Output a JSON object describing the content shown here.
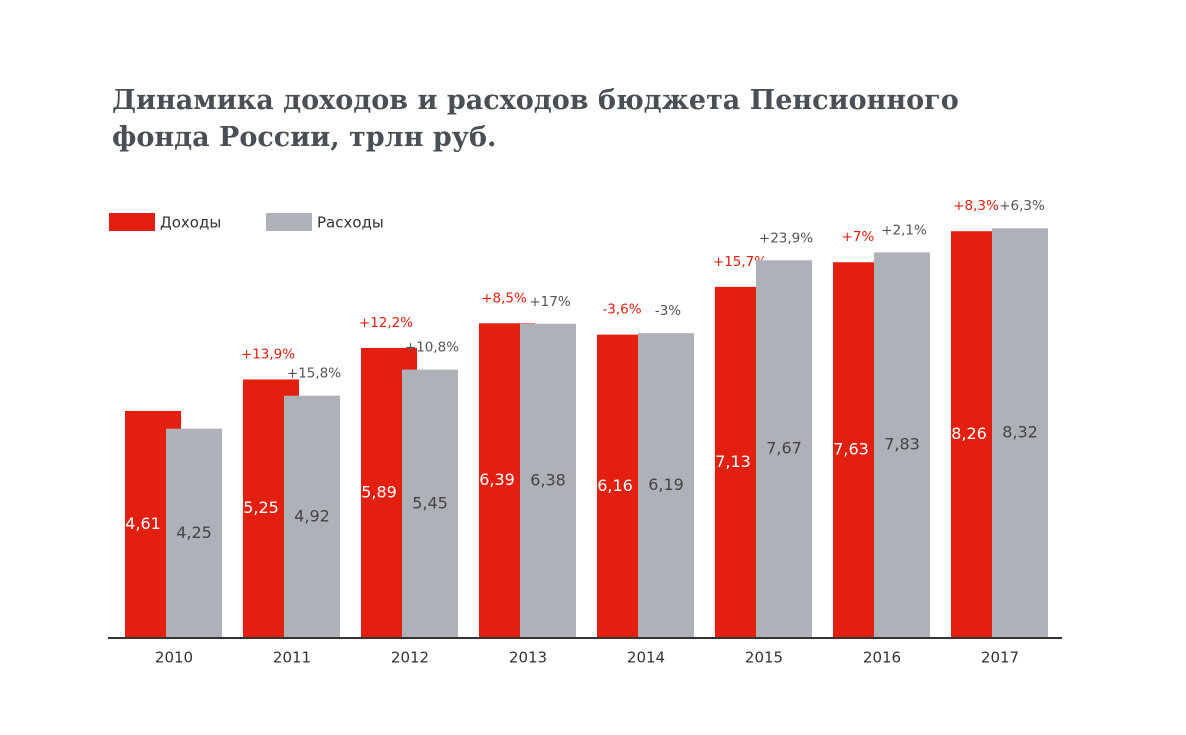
{
  "chart_data": {
    "type": "bar",
    "title": "Динамика доходов и расходов бюджета Пенсионного фонда России, трлн руб.",
    "categories": [
      "2010",
      "2011",
      "2012",
      "2013",
      "2014",
      "2015",
      "2016",
      "2017"
    ],
    "series": [
      {
        "name": "Доходы",
        "color": "#e3200f",
        "values": [
          4.61,
          5.25,
          5.89,
          6.39,
          6.16,
          7.13,
          7.63,
          8.26
        ],
        "value_labels": [
          "4,61",
          "5,25",
          "5,89",
          "6,39",
          "6,16",
          "7,13",
          "7,63",
          "8,26"
        ],
        "change_labels": [
          null,
          "+13,9%",
          "+12,2%",
          "+8,5%",
          "-3,6%",
          "+15,7%",
          "+7%",
          "+8,3%"
        ]
      },
      {
        "name": "Расходы",
        "color": "#aeb2b8",
        "values": [
          4.25,
          4.92,
          5.45,
          6.38,
          6.19,
          7.67,
          7.83,
          8.32
        ],
        "value_labels": [
          "4,25",
          "4,92",
          "5,45",
          "6,38",
          "6,19",
          "7,67",
          "7,83",
          "8,32"
        ],
        "change_labels": [
          null,
          "+15,8%",
          "+10,8%",
          "+17%",
          "-3%",
          "+23,9%",
          "+2,1%",
          "+6,3%"
        ]
      }
    ],
    "legend": "top-left"
  }
}
